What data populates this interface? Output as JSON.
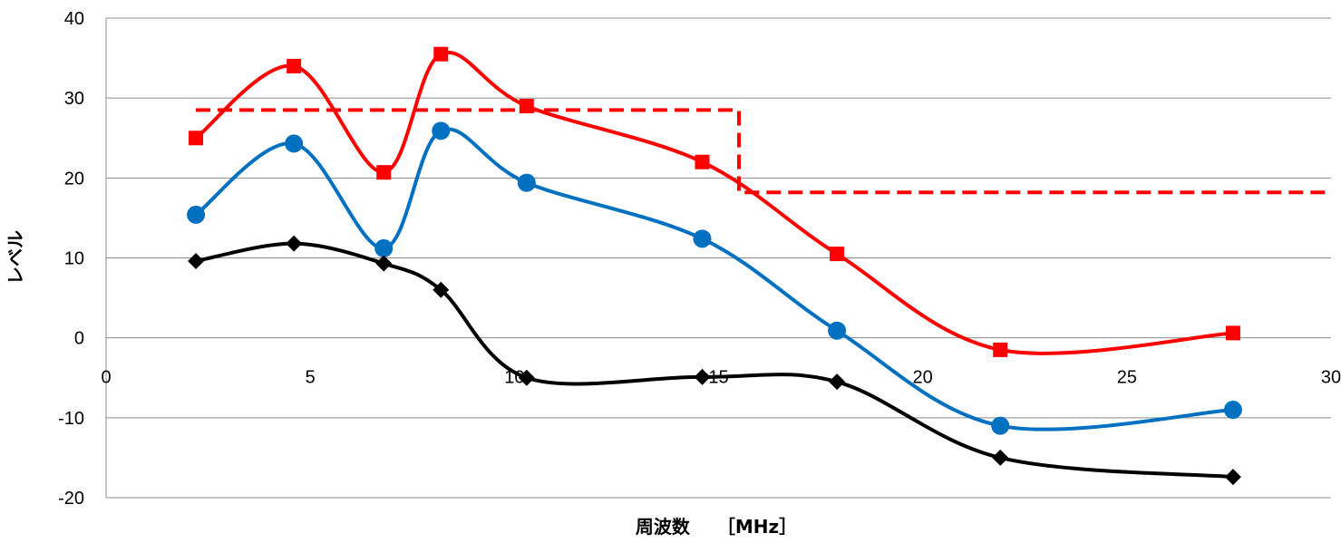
{
  "chart_data": {
    "type": "line",
    "xlabel": "周波数　　［MHz］",
    "ylabel": "レベル",
    "xlim": [
      0,
      30
    ],
    "ylim": [
      -20,
      40
    ],
    "x_ticks": [
      0,
      5,
      10,
      15,
      20,
      25,
      30
    ],
    "y_ticks": [
      -20,
      -10,
      0,
      10,
      20,
      30,
      40
    ],
    "grid": "horizontal",
    "smooth": true,
    "series": [
      {
        "color": "#ff0000",
        "marker": "square",
        "x": [
          2.2,
          4.6,
          6.8,
          8.2,
          10.3,
          14.6,
          17.9,
          21.9,
          27.6
        ],
        "y": [
          25,
          34,
          20.7,
          35.5,
          29,
          22,
          10.5,
          -1.5,
          0.6
        ]
      },
      {
        "color": "#0070c0",
        "marker": "circle",
        "x": [
          2.2,
          4.6,
          6.8,
          8.2,
          10.3,
          14.6,
          17.9,
          21.9,
          27.6
        ],
        "y": [
          15.4,
          24.3,
          11.2,
          25.9,
          19.4,
          12.4,
          0.9,
          -11,
          -9
        ]
      },
      {
        "color": "#000000",
        "marker": "diamond",
        "x": [
          2.2,
          4.6,
          6.8,
          8.2,
          10.3,
          14.6,
          17.9,
          21.9,
          27.6
        ],
        "y": [
          9.6,
          11.8,
          9.3,
          6,
          -5,
          -4.9,
          -5.5,
          -15,
          -17.4
        ]
      }
    ],
    "limit_line": {
      "color": "#ff0000",
      "style": "dashed",
      "x": [
        2.2,
        15.5,
        15.5,
        30
      ],
      "y": [
        28.5,
        28.5,
        18.2,
        18.2
      ]
    }
  }
}
